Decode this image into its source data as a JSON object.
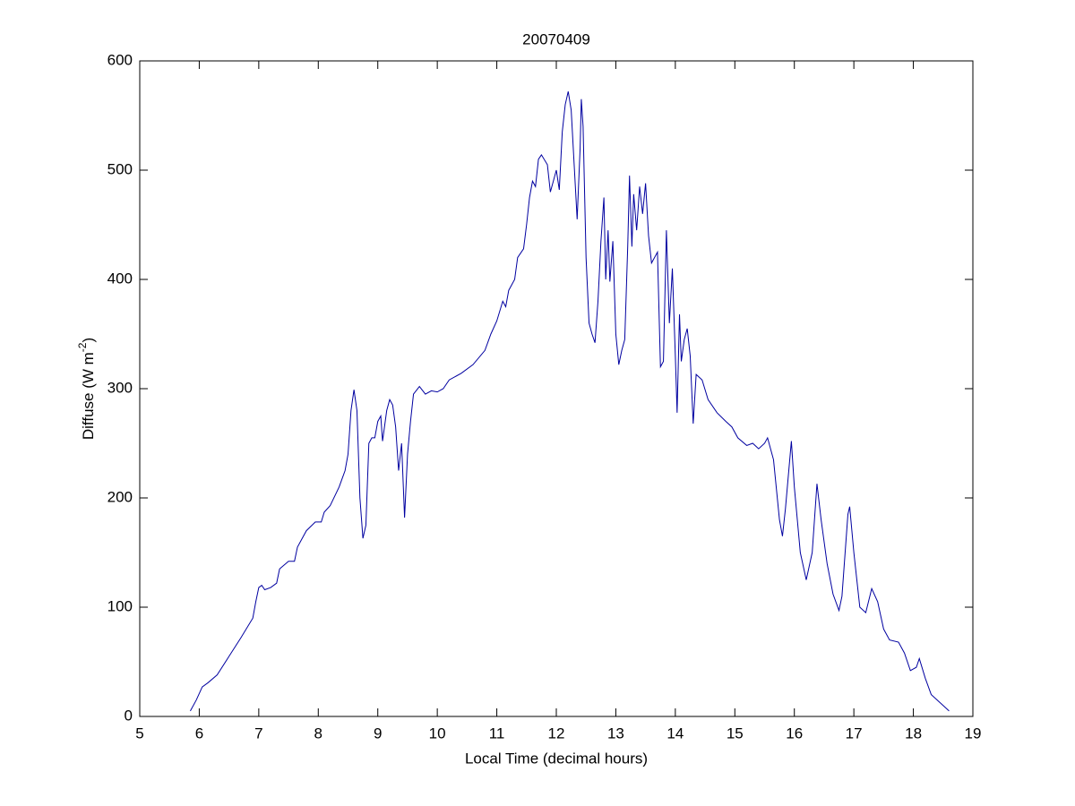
{
  "chart_data": {
    "type": "line",
    "title": "20070409",
    "xlabel": "Local Time (decimal hours)",
    "ylabel": [
      "Diffuse (W m",
      "-2",
      ")"
    ],
    "xlim": [
      5,
      19
    ],
    "xticks": [
      5,
      6,
      7,
      8,
      9,
      10,
      11,
      12,
      13,
      14,
      15,
      16,
      17,
      18,
      19
    ],
    "ylim": [
      0,
      600
    ],
    "yticks": [
      0,
      100,
      200,
      300,
      400,
      500,
      600
    ],
    "grid": false,
    "series": [
      {
        "name": "Diffuse",
        "color": "#0000a0",
        "x": [
          5.85,
          5.95,
          6.05,
          6.15,
          6.3,
          6.5,
          6.7,
          6.9,
          6.95,
          7.0,
          7.05,
          7.1,
          7.2,
          7.3,
          7.35,
          7.5,
          7.6,
          7.65,
          7.8,
          7.95,
          8.05,
          8.1,
          8.2,
          8.35,
          8.45,
          8.5,
          8.55,
          8.6,
          8.65,
          8.7,
          8.75,
          8.8,
          8.85,
          8.9,
          8.95,
          9.0,
          9.05,
          9.08,
          9.15,
          9.2,
          9.25,
          9.3,
          9.35,
          9.4,
          9.45,
          9.5,
          9.55,
          9.6,
          9.7,
          9.8,
          9.9,
          10.0,
          10.1,
          10.2,
          10.4,
          10.6,
          10.8,
          10.9,
          11.0,
          11.1,
          11.15,
          11.2,
          11.3,
          11.35,
          11.45,
          11.5,
          11.55,
          11.6,
          11.65,
          11.7,
          11.75,
          11.85,
          11.9,
          11.95,
          12.0,
          12.05,
          12.1,
          12.15,
          12.2,
          12.25,
          12.3,
          12.35,
          12.4,
          12.42,
          12.45,
          12.5,
          12.55,
          12.6,
          12.65,
          12.7,
          12.75,
          12.8,
          12.83,
          12.87,
          12.9,
          12.95,
          13.0,
          13.05,
          13.1,
          13.15,
          13.2,
          13.23,
          13.27,
          13.3,
          13.35,
          13.4,
          13.45,
          13.5,
          13.55,
          13.6,
          13.65,
          13.7,
          13.75,
          13.8,
          13.85,
          13.9,
          13.95,
          14.0,
          14.03,
          14.07,
          14.1,
          14.15,
          14.2,
          14.25,
          14.3,
          14.35,
          14.45,
          14.55,
          14.7,
          14.85,
          14.95,
          15.05,
          15.2,
          15.3,
          15.4,
          15.5,
          15.55,
          15.65,
          15.75,
          15.8,
          15.85,
          15.95,
          16.0,
          16.1,
          16.2,
          16.3,
          16.38,
          16.45,
          16.55,
          16.65,
          16.75,
          16.8,
          16.9,
          16.93,
          17.0,
          17.1,
          17.2,
          17.3,
          17.4,
          17.5,
          17.6,
          17.75,
          17.85,
          17.95,
          18.05,
          18.1,
          18.2,
          18.3,
          18.5,
          18.6
        ],
        "values": [
          5,
          15,
          27,
          31,
          38,
          55,
          72,
          90,
          105,
          118,
          120,
          116,
          118,
          122,
          135,
          142,
          142,
          155,
          170,
          178,
          178,
          187,
          193,
          210,
          225,
          240,
          280,
          299,
          280,
          200,
          163,
          175,
          250,
          255,
          255,
          270,
          275,
          252,
          280,
          290,
          285,
          265,
          225,
          250,
          182,
          240,
          270,
          295,
          302,
          295,
          298,
          297,
          300,
          308,
          314,
          322,
          335,
          350,
          362,
          380,
          375,
          390,
          400,
          420,
          428,
          450,
          475,
          490,
          485,
          510,
          514,
          505,
          480,
          490,
          500,
          482,
          535,
          560,
          572,
          555,
          505,
          455,
          520,
          565,
          540,
          420,
          360,
          350,
          342,
          380,
          435,
          475,
          400,
          445,
          398,
          435,
          350,
          322,
          335,
          345,
          430,
          495,
          430,
          478,
          445,
          485,
          460,
          488,
          440,
          415,
          420,
          425,
          320,
          325,
          445,
          360,
          410,
          330,
          278,
          368,
          325,
          345,
          355,
          330,
          268,
          313,
          308,
          290,
          278,
          270,
          265,
          255,
          248,
          250,
          245,
          250,
          255,
          235,
          180,
          165,
          190,
          252,
          210,
          150,
          125,
          150,
          213,
          180,
          140,
          112,
          97,
          110,
          185,
          192,
          150,
          100,
          95,
          117,
          105,
          80,
          70,
          68,
          58,
          42,
          45,
          53,
          35,
          20,
          10,
          5
        ]
      }
    ]
  }
}
